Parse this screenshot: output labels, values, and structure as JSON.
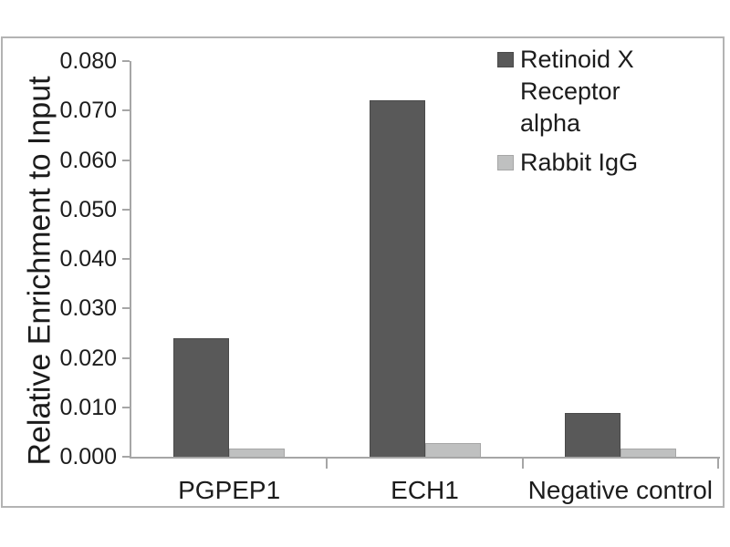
{
  "chart_data": {
    "type": "bar",
    "title": "",
    "xlabel": "",
    "ylabel": "Relative Enrichment to Input",
    "categories": [
      "PGPEP1",
      "ECH1",
      "Negative control"
    ],
    "series": [
      {
        "name": "Retinoid X Receptor alpha",
        "label_lines": [
          "Retinoid X Receptor",
          "alpha"
        ],
        "color": "#595959",
        "edge_color": "#4a4a4a",
        "values": [
          0.024,
          0.072,
          0.0088
        ]
      },
      {
        "name": "Rabbit IgG",
        "label_lines": [
          "Rabbit IgG"
        ],
        "color": "#bfc0c0",
        "edge_color": "#a6a6a6",
        "values": [
          0.0017,
          0.0027,
          0.0017
        ]
      }
    ],
    "ylim": [
      0,
      0.08
    ],
    "ytick_step": 0.01,
    "ytick_decimals": 3,
    "ytick_labels": [
      "0.000",
      "0.010",
      "0.020",
      "0.030",
      "0.040",
      "0.050",
      "0.060",
      "0.070",
      "0.080"
    ],
    "grid": "off",
    "legend_position": "top-right",
    "axis_color": "#a6a6a6",
    "text_color": "#1c1c1c",
    "frame_color": "#b3b3b3",
    "background": "#ffffff"
  }
}
